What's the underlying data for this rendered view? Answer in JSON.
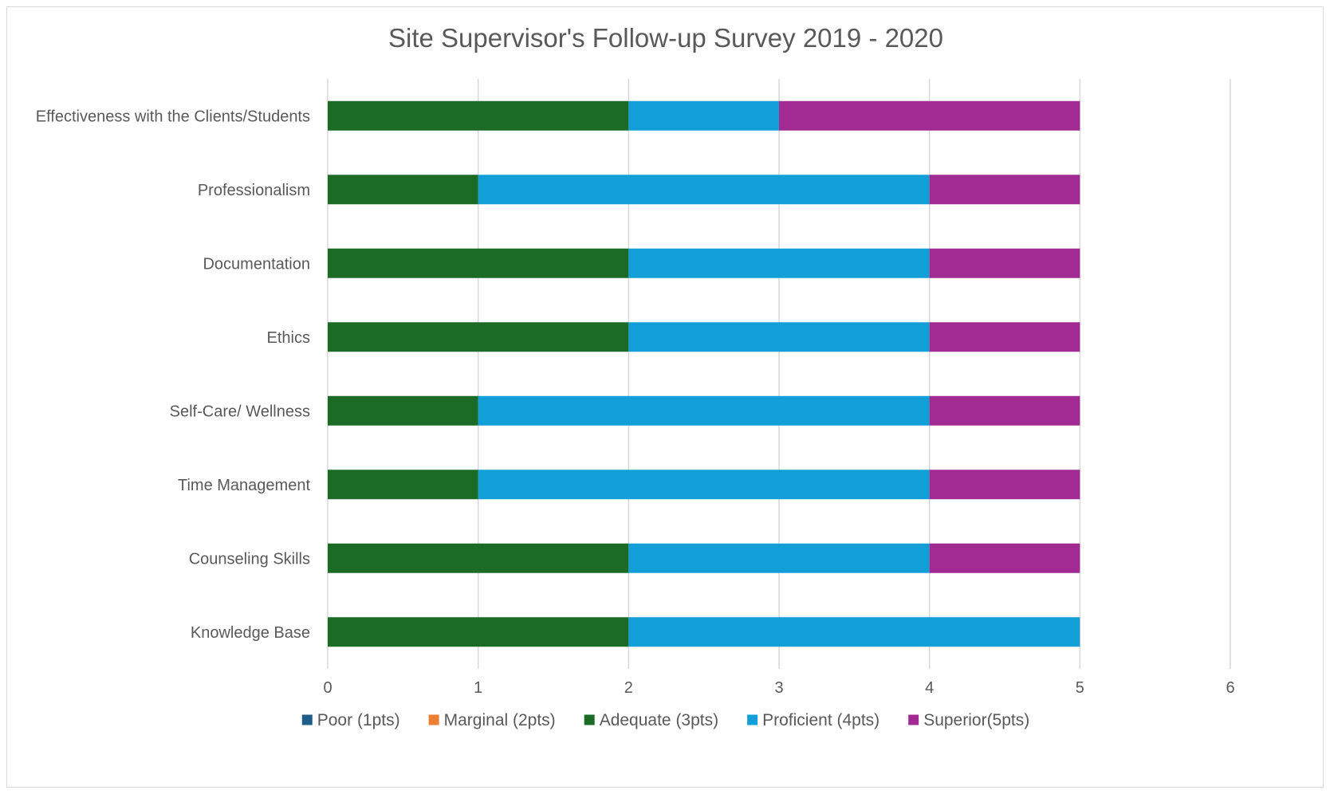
{
  "chart_data": {
    "type": "bar",
    "orientation": "horizontal",
    "stacked": true,
    "title": "Site Supervisor's Follow-up Survey 2019 - 2020",
    "categories": [
      "Effectiveness with the  Clients/Students",
      "Professionalism",
      "Documentation",
      "Ethics",
      "Self-Care/ Wellness",
      "Time Management",
      "Counseling Skills",
      "Knowledge Base"
    ],
    "series": [
      {
        "name": "Poor (1pts)",
        "color": "#1f5c87",
        "values": [
          0,
          0,
          0,
          0,
          0,
          0,
          0,
          0
        ]
      },
      {
        "name": "Marginal (2pts)",
        "color": "#ed7d31",
        "values": [
          0,
          0,
          0,
          0,
          0,
          0,
          0,
          0
        ]
      },
      {
        "name": "Adequate (3pts)",
        "color": "#1b6b27",
        "values": [
          2,
          1,
          2,
          2,
          1,
          1,
          2,
          2
        ]
      },
      {
        "name": "Proficient (4pts)",
        "color": "#129fd8",
        "values": [
          1,
          3,
          2,
          2,
          3,
          3,
          2,
          3
        ]
      },
      {
        "name": "Superior(5pts)",
        "color": "#a12b93",
        "values": [
          2,
          1,
          1,
          1,
          1,
          1,
          1,
          0
        ]
      }
    ],
    "xlim": [
      0,
      6
    ],
    "xticks": [
      "0",
      "1",
      "2",
      "3",
      "4",
      "5",
      "6"
    ],
    "grid": "vertical",
    "legend": "bottom"
  }
}
